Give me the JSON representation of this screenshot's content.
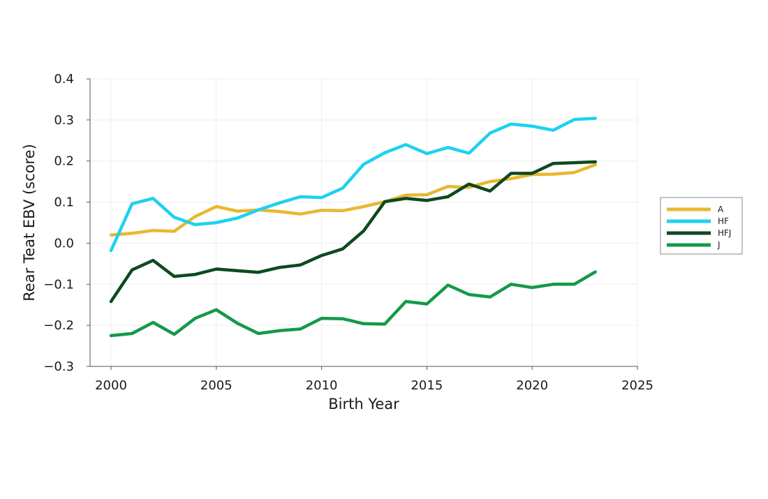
{
  "chart_data": {
    "type": "line",
    "title": "",
    "xlabel": "Birth Year",
    "ylabel": "Rear Teat EBV (score)",
    "xlim": [
      1999,
      2025
    ],
    "ylim": [
      -0.3,
      0.4
    ],
    "x_ticks": [
      2000,
      2005,
      2010,
      2015,
      2020,
      2025
    ],
    "y_ticks": [
      0.4,
      0.3,
      0.2,
      0.1,
      0.0,
      -0.1,
      -0.2,
      -0.3
    ],
    "x_tick_labels": [
      "2000",
      "2005",
      "2010",
      "2015",
      "2020",
      "2025"
    ],
    "y_tick_labels": [
      "0.4",
      "0.3",
      "0.2",
      "0.1",
      "0.0",
      "−0.1",
      "−0.2",
      "−0.3"
    ],
    "grid": true,
    "legend_position": "right",
    "x": [
      2000,
      2001,
      2002,
      2003,
      2004,
      2005,
      2006,
      2007,
      2008,
      2009,
      2010,
      2011,
      2012,
      2013,
      2014,
      2015,
      2016,
      2017,
      2018,
      2019,
      2020,
      2021,
      2022,
      2023
    ],
    "series": [
      {
        "name": "A",
        "color": "#E8B830",
        "values": [
          0.02,
          0.024,
          0.031,
          0.029,
          0.065,
          0.089,
          0.078,
          0.081,
          0.077,
          0.071,
          0.08,
          0.079,
          0.089,
          0.101,
          0.117,
          0.118,
          0.138,
          0.136,
          0.15,
          0.157,
          0.167,
          0.168,
          0.172,
          0.191
        ]
      },
      {
        "name": "HF",
        "color": "#1DD1F0",
        "values": [
          -0.018,
          0.096,
          0.109,
          0.063,
          0.045,
          0.05,
          0.061,
          0.081,
          0.098,
          0.113,
          0.111,
          0.134,
          0.192,
          0.22,
          0.24,
          0.218,
          0.233,
          0.219,
          0.268,
          0.29,
          0.285,
          0.275,
          0.301,
          0.304
        ]
      },
      {
        "name": "HFJ",
        "color": "#0D4A1E",
        "values": [
          -0.142,
          -0.065,
          -0.042,
          -0.081,
          -0.076,
          -0.063,
          -0.067,
          -0.071,
          -0.059,
          -0.053,
          -0.03,
          -0.014,
          0.03,
          0.101,
          0.109,
          0.104,
          0.113,
          0.144,
          0.127,
          0.17,
          0.17,
          0.194,
          0.196,
          0.198
        ]
      },
      {
        "name": "J",
        "color": "#14994A",
        "values": [
          -0.225,
          -0.22,
          -0.193,
          -0.222,
          -0.183,
          -0.162,
          -0.195,
          -0.22,
          -0.213,
          -0.209,
          -0.183,
          -0.184,
          -0.196,
          -0.197,
          -0.142,
          -0.148,
          -0.102,
          -0.125,
          -0.131,
          -0.1,
          -0.108,
          -0.1,
          -0.1,
          -0.07
        ]
      }
    ]
  }
}
